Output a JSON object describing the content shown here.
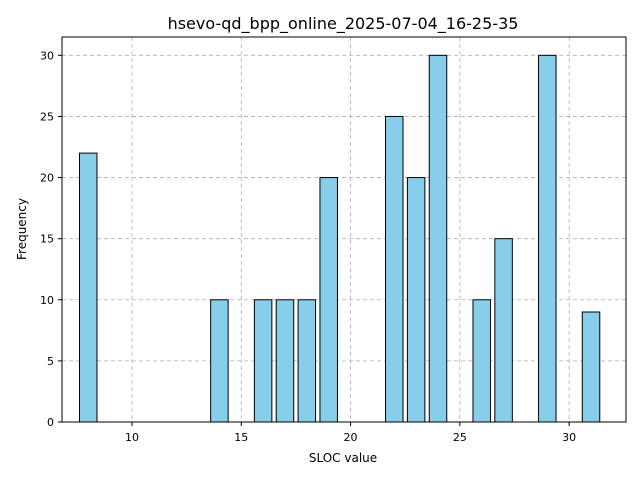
{
  "chart_data": {
    "type": "bar",
    "title": "hsevo-qd_bpp_online_2025-07-04_16-25-35",
    "xlabel": "SLOC value",
    "ylabel": "Frequency",
    "x": [
      8,
      14,
      16,
      17,
      18,
      19,
      22,
      23,
      24,
      26,
      27,
      29,
      31
    ],
    "values": [
      22,
      10,
      10,
      10,
      10,
      20,
      25,
      20,
      30,
      10,
      15,
      30,
      9
    ],
    "xlim": [
      6.8,
      32.6
    ],
    "ylim": [
      0,
      31.5
    ],
    "xticks": [
      10,
      15,
      20,
      25,
      30
    ],
    "yticks": [
      0,
      5,
      10,
      15,
      20,
      25,
      30
    ],
    "grid": true,
    "bar_color": "#87ceeb",
    "edge_color": "#000000",
    "grid_color": "#b0b0b0"
  }
}
